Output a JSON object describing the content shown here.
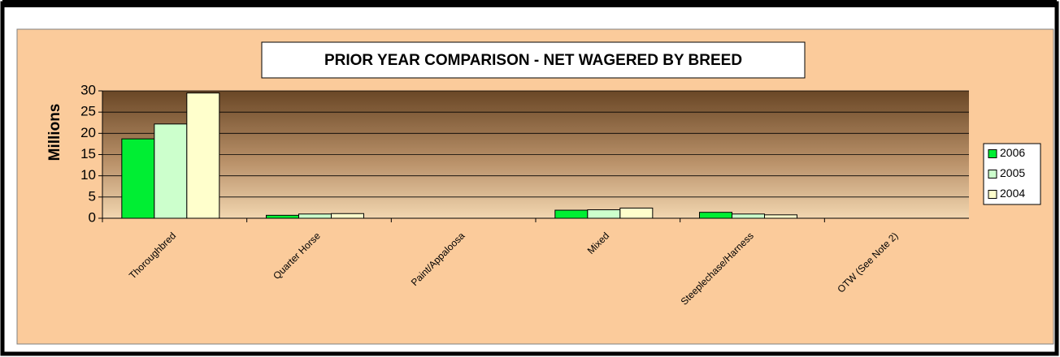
{
  "chart_data": {
    "type": "bar",
    "title": "PRIOR YEAR COMPARISON - NET WAGERED BY BREED",
    "y_label": "Millions",
    "categories": [
      "Thoroughbred",
      "Quarter Horse",
      "Paint/Appaloosa",
      "Mixed",
      "Steeplechase/Harness",
      "OTW (See Note 2)"
    ],
    "series": [
      {
        "name": "2006",
        "color": "#00ee33",
        "values": [
          18.7,
          0.7,
          0,
          1.9,
          1.4,
          0
        ]
      },
      {
        "name": "2005",
        "color": "#ccffcc",
        "values": [
          22.2,
          1.0,
          0,
          2.0,
          1.0,
          0
        ]
      },
      {
        "name": "2004",
        "color": "#ffffcc",
        "values": [
          29.5,
          1.1,
          0,
          2.4,
          0.8,
          0
        ]
      }
    ],
    "ylim": [
      0,
      30
    ],
    "yticks": [
      0,
      5,
      10,
      15,
      20,
      25,
      30
    ],
    "grid": true,
    "legend": "right"
  }
}
